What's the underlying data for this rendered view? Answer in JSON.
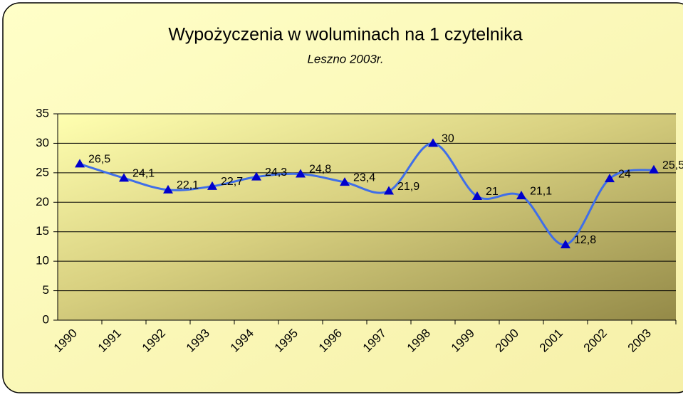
{
  "chart_data": {
    "type": "line",
    "title": "Wypożyczenia w woluminach na 1 czytelnika",
    "subtitle": "Leszno 2003r.",
    "categories": [
      "1990",
      "1991",
      "1992",
      "1993",
      "1994",
      "1995",
      "1996",
      "1997",
      "1998",
      "1999",
      "2000",
      "2001",
      "2002",
      "2003"
    ],
    "series": [
      {
        "name": "Wypożyczenia",
        "color": "#3f6ee8",
        "marker_color": "#0000cc",
        "values": [
          26.5,
          24.1,
          22.1,
          22.7,
          24.3,
          24.8,
          23.4,
          21.9,
          30,
          21,
          21.1,
          12.8,
          24,
          25.5
        ],
        "value_labels": [
          "26,5",
          "24,1",
          "22,1",
          "22,7",
          "24,3",
          "24,8",
          "23,4",
          "21,9",
          "30",
          "21",
          "21,1",
          "12,8",
          "24",
          "25,5"
        ]
      }
    ],
    "ylim": [
      0,
      35
    ],
    "yticks": [
      0,
      5,
      10,
      15,
      20,
      25,
      30,
      35
    ],
    "grid": true,
    "smooth": true
  }
}
